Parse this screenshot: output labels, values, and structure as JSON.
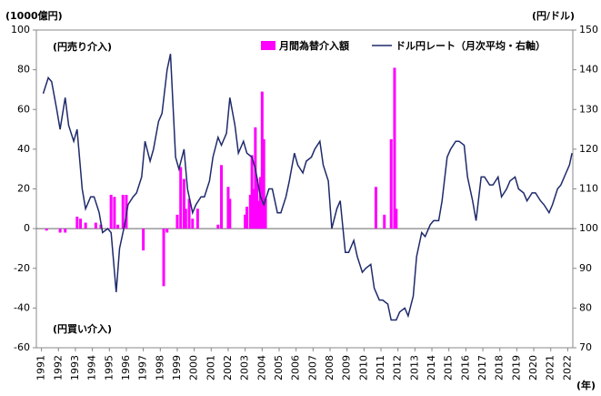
{
  "chart_data": {
    "type": "bar",
    "ylabel": "(1000億円)",
    "y2label": "(円/ドル)",
    "xlabel": "(年)",
    "annotations": [
      "(円売り介入)",
      "(円買い介入)"
    ],
    "xlim": [
      1990.7,
      2022.3
    ],
    "xticks": [
      1991,
      1992,
      1993,
      1994,
      1995,
      1996,
      1997,
      1998,
      1999,
      2000,
      2001,
      2002,
      2003,
      2004,
      2005,
      2006,
      2007,
      2008,
      2009,
      2010,
      2011,
      2012,
      2013,
      2014,
      2015,
      2016,
      2017,
      2018,
      2019,
      2020,
      2021,
      2022
    ],
    "ylim": [
      -60,
      100
    ],
    "yticks": [
      -60,
      -40,
      -20,
      0,
      20,
      40,
      60,
      80,
      100
    ],
    "y2lim": [
      70,
      150
    ],
    "y2ticks": [
      70,
      80,
      90,
      100,
      110,
      120,
      130,
      140,
      150
    ],
    "legend": "top",
    "series": [
      {
        "name": "月間為替介入額",
        "color": "#ff00ff",
        "type": "bar",
        "x": [
          1991.3,
          1992.1,
          1992.4,
          1993.1,
          1993.3,
          1993.6,
          1994.2,
          1994.5,
          1995.1,
          1995.3,
          1995.5,
          1995.8,
          1996.0,
          1997.0,
          1998.2,
          1998.4,
          1999.0,
          1999.2,
          1999.4,
          1999.5,
          1999.7,
          1999.9,
          2000.2,
          2001.4,
          2001.6,
          2002.0,
          2002.1,
          2003.0,
          2003.1,
          2003.3,
          2003.4,
          2003.5,
          2003.6,
          2003.7,
          2003.8,
          2003.9,
          2004.0,
          2004.1,
          2004.2,
          2010.7,
          2011.2,
          2011.6,
          2011.8,
          2011.9
        ],
        "values": [
          -1,
          -2,
          -2,
          6,
          5,
          3,
          3,
          2,
          17,
          16,
          2,
          17,
          17,
          -11,
          -29,
          -2,
          7,
          31,
          25,
          10,
          15,
          5,
          10,
          2,
          32,
          21,
          15,
          7,
          11,
          17,
          37,
          20,
          51,
          25,
          14,
          26,
          69,
          45,
          15,
          21,
          7,
          45,
          81,
          10
        ]
      },
      {
        "name": "ドル円レート（月次平均・右軸）",
        "color": "#1f2a6b",
        "type": "line",
        "axis": "y2",
        "x": [
          1991.1,
          1991.4,
          1991.6,
          1991.9,
          1992.1,
          1992.4,
          1992.6,
          1992.9,
          1993.1,
          1993.4,
          1993.6,
          1993.9,
          1994.1,
          1994.4,
          1994.6,
          1994.9,
          1995.1,
          1995.4,
          1995.6,
          1995.9,
          1996.1,
          1996.4,
          1996.6,
          1996.9,
          1997.1,
          1997.4,
          1997.6,
          1997.9,
          1998.1,
          1998.4,
          1998.6,
          1998.9,
          1999.1,
          1999.4,
          1999.6,
          1999.9,
          2000.1,
          2000.4,
          2000.6,
          2000.9,
          2001.1,
          2001.4,
          2001.6,
          2001.9,
          2002.1,
          2002.4,
          2002.6,
          2002.9,
          2003.1,
          2003.4,
          2003.6,
          2003.9,
          2004.1,
          2004.4,
          2004.6,
          2004.9,
          2005.1,
          2005.4,
          2005.6,
          2005.9,
          2006.1,
          2006.4,
          2006.6,
          2006.9,
          2007.1,
          2007.4,
          2007.6,
          2007.9,
          2008.1,
          2008.4,
          2008.6,
          2008.9,
          2009.1,
          2009.4,
          2009.6,
          2009.9,
          2010.1,
          2010.4,
          2010.6,
          2010.9,
          2011.1,
          2011.4,
          2011.6,
          2011.9,
          2012.1,
          2012.4,
          2012.6,
          2012.9,
          2013.1,
          2013.4,
          2013.6,
          2013.9,
          2014.1,
          2014.4,
          2014.6,
          2014.9,
          2015.1,
          2015.4,
          2015.6,
          2015.9,
          2016.1,
          2016.4,
          2016.6,
          2016.9,
          2017.1,
          2017.4,
          2017.6,
          2017.9,
          2018.1,
          2018.4,
          2018.6,
          2018.9,
          2019.1,
          2019.4,
          2019.6,
          2019.9,
          2020.1,
          2020.4,
          2020.6,
          2020.9,
          2021.1,
          2021.4,
          2021.6,
          2021.9,
          2022.1,
          2022.25
        ],
        "values": [
          134,
          138,
          137,
          130,
          125,
          133,
          126,
          122,
          125,
          110,
          105,
          108,
          108,
          104,
          99,
          100,
          99,
          84,
          95,
          101,
          106,
          108,
          109,
          113,
          122,
          117,
          120,
          127,
          129,
          140,
          144,
          118,
          115,
          120,
          110,
          104,
          106,
          108,
          108,
          112,
          118,
          123,
          121,
          124,
          133,
          126,
          119,
          122,
          119,
          118,
          115,
          108,
          106,
          110,
          110,
          104,
          104,
          108,
          112,
          119,
          116,
          114,
          117,
          118,
          120,
          122,
          116,
          112,
          100,
          105,
          107,
          94,
          94,
          97,
          93,
          89,
          90,
          91,
          85,
          82,
          82,
          81,
          77,
          77,
          79,
          80,
          78,
          83,
          93,
          99,
          98,
          101,
          102,
          102,
          107,
          118,
          120,
          122,
          122,
          121,
          113,
          107,
          102,
          113,
          113,
          111,
          111,
          113,
          108,
          110,
          112,
          113,
          110,
          109,
          107,
          109,
          109,
          107,
          106,
          104,
          106,
          110,
          111,
          114,
          116,
          119
        ]
      }
    ]
  }
}
